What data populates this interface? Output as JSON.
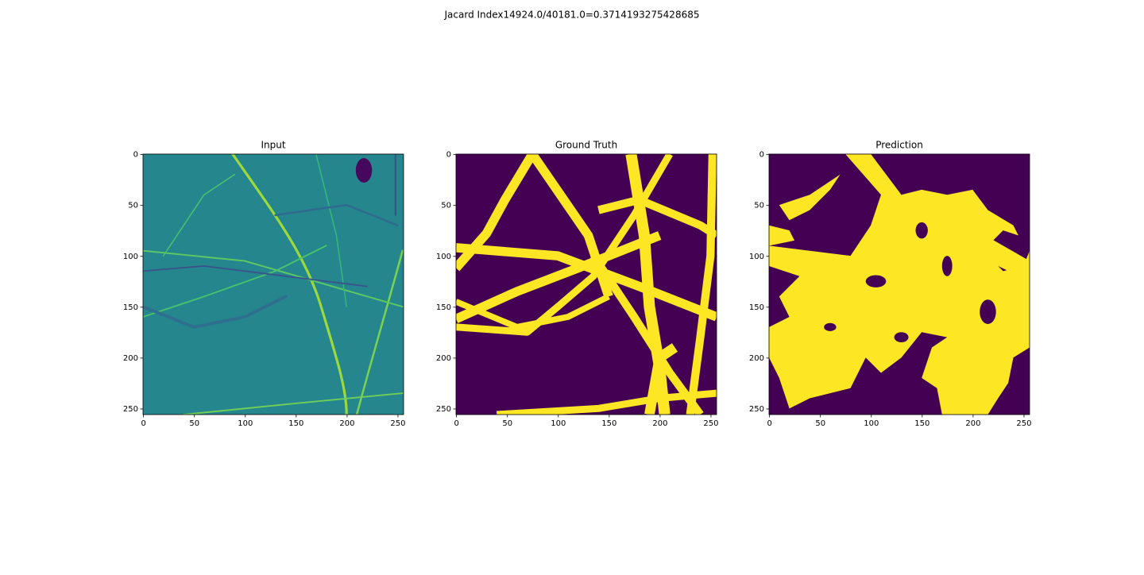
{
  "title": "Jacard Index14924.0/40181.0=0.3714193275428685",
  "chart_data": [
    {
      "type": "image",
      "title": "Input",
      "xlim": [
        -0.5,
        255.5
      ],
      "ylim": [
        255.5,
        -0.5
      ],
      "xticks": [
        0,
        50,
        100,
        150,
        200,
        250
      ],
      "yticks": [
        0,
        50,
        100,
        150,
        200,
        250
      ]
    },
    {
      "type": "image",
      "title": "Ground Truth",
      "xlim": [
        -0.5,
        255.5
      ],
      "ylim": [
        255.5,
        -0.5
      ],
      "xticks": [
        0,
        50,
        100,
        150,
        200,
        250
      ],
      "yticks": [
        0,
        50,
        100,
        150,
        200,
        250
      ]
    },
    {
      "type": "image",
      "title": "Prediction",
      "xlim": [
        -0.5,
        255.5
      ],
      "ylim": [
        255.5,
        -0.5
      ],
      "xticks": [
        0,
        50,
        100,
        150,
        200,
        250
      ],
      "yticks": [
        0,
        50,
        100,
        150,
        200,
        250
      ]
    }
  ]
}
